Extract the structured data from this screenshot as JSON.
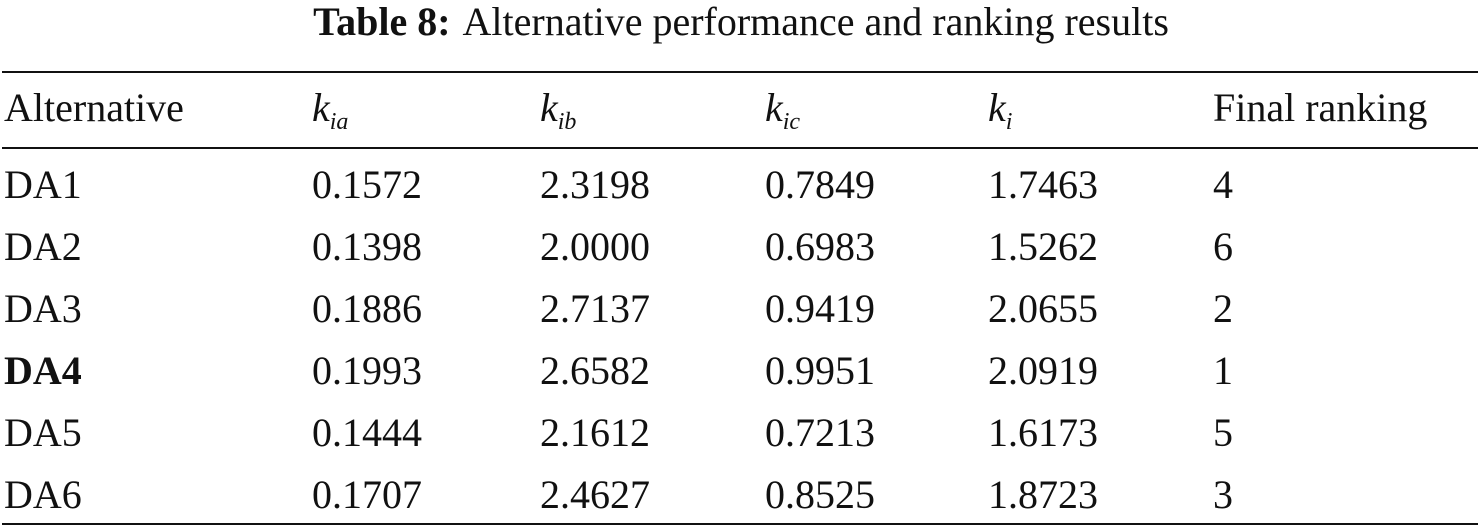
{
  "table": {
    "label": "Table 8:",
    "caption": "Alternative performance and ranking results",
    "header": [
      "Alternative",
      {
        "base": "k",
        "sub": "ia"
      },
      {
        "base": "k",
        "sub": "ib"
      },
      {
        "base": "k",
        "sub": "ic"
      },
      {
        "base": "k",
        "sub": "i"
      },
      "Final ranking"
    ],
    "rows": [
      [
        "DA1",
        "0.1572",
        "2.3198",
        "0.7849",
        "1.7463",
        "4"
      ],
      [
        "DA2",
        "0.1398",
        "2.0000",
        "0.6983",
        "1.5262",
        "6"
      ],
      [
        "DA3",
        "0.1886",
        "2.7137",
        "0.9419",
        "2.0655",
        "2"
      ],
      [
        {
          "text": "DA4",
          "bold": true
        },
        "0.1993",
        "2.6582",
        "0.9951",
        "2.0919",
        "1"
      ],
      [
        "DA5",
        "0.1444",
        "2.1612",
        "0.7213",
        "1.6173",
        "5"
      ],
      [
        "DA6",
        "0.1707",
        "2.4627",
        "0.8525",
        "1.8723",
        "3"
      ]
    ]
  }
}
